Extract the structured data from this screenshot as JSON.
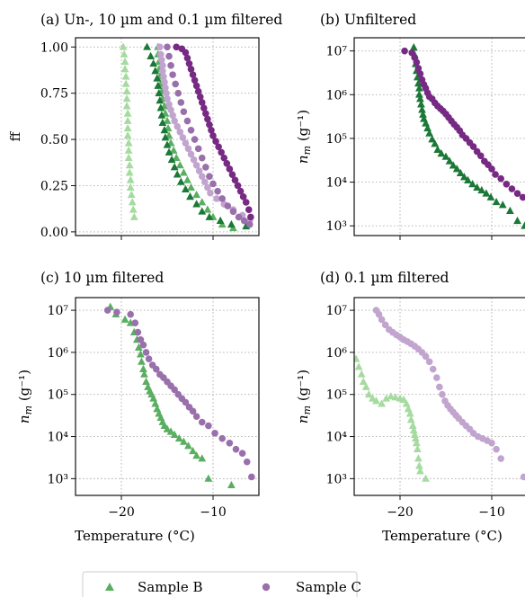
{
  "colors": {
    "B_dark": "#1b7837",
    "B_mid": "#5aae61",
    "B_light": "#a6dba0",
    "C_dark": "#762a83",
    "C_mid": "#9970ab",
    "C_light": "#c2a5cf",
    "grid": "#b0b0b0"
  },
  "legend": {
    "sample_b": "Sample B",
    "sample_c": "Sample C"
  },
  "chart_data": [
    {
      "id": "a",
      "type": "scatter",
      "title": "(a) Un-, 10 µm and 0.1 µm filtered",
      "xlim": [
        -25,
        -5
      ],
      "xticks": [
        -20,
        -10
      ],
      "ylim": [
        -0.02,
        1.05
      ],
      "yscale": "linear",
      "yticks": [
        0.0,
        0.25,
        0.5,
        0.75,
        1.0
      ],
      "ytick_labels": [
        "0.00",
        "0.25",
        "0.50",
        "0.75",
        "1.00"
      ],
      "ylabel": "ff",
      "xlabel": "",
      "series": [
        {
          "sample": "B",
          "marker": "triangle",
          "shade": "B_light",
          "x": [
            -19.8,
            -19.7,
            -19.6,
            -19.6,
            -19.5,
            -19.5,
            -19.4,
            -19.4,
            -19.4,
            -19.3,
            -19.3,
            -19.3,
            -19.3,
            -19.2,
            -19.2,
            -19.2,
            -19.1,
            -19.1,
            -19.0,
            -19.0,
            -18.9,
            -18.8,
            -18.7,
            -18.6
          ],
          "y": [
            1.0,
            0.96,
            0.92,
            0.88,
            0.84,
            0.8,
            0.76,
            0.72,
            0.68,
            0.64,
            0.6,
            0.56,
            0.52,
            0.48,
            0.44,
            0.4,
            0.36,
            0.32,
            0.28,
            0.24,
            0.2,
            0.16,
            0.12,
            0.08
          ]
        },
        {
          "sample": "B",
          "marker": "triangle",
          "shade": "B_mid",
          "x": [
            -16.0,
            -16.0,
            -15.9,
            -15.9,
            -15.8,
            -15.7,
            -15.6,
            -15.5,
            -15.3,
            -15.2,
            -15.0,
            -14.9,
            -14.8,
            -14.6,
            -14.3,
            -14.0,
            -13.6,
            -13.2,
            -12.8,
            -12.4,
            -11.8,
            -11.2,
            -10.6,
            -10.0,
            -9.0,
            -7.8
          ],
          "y": [
            1.0,
            0.96,
            0.92,
            0.88,
            0.84,
            0.8,
            0.76,
            0.72,
            0.68,
            0.64,
            0.6,
            0.56,
            0.52,
            0.48,
            0.44,
            0.4,
            0.36,
            0.32,
            0.28,
            0.24,
            0.2,
            0.16,
            0.12,
            0.08,
            0.04,
            0.02
          ]
        },
        {
          "sample": "B",
          "marker": "triangle",
          "shade": "B_dark",
          "x": [
            -17.2,
            -16.8,
            -16.5,
            -16.3,
            -16.1,
            -16.0,
            -15.9,
            -15.8,
            -15.7,
            -15.6,
            -15.5,
            -15.3,
            -15.2,
            -15.0,
            -14.8,
            -14.5,
            -14.2,
            -13.9,
            -13.5,
            -13.0,
            -12.5,
            -11.8,
            -11.2,
            -10.4,
            -9.2,
            -8.0,
            -6.4
          ],
          "y": [
            1.0,
            0.95,
            0.91,
            0.87,
            0.83,
            0.79,
            0.75,
            0.71,
            0.67,
            0.63,
            0.59,
            0.55,
            0.51,
            0.47,
            0.43,
            0.39,
            0.35,
            0.31,
            0.27,
            0.23,
            0.19,
            0.15,
            0.11,
            0.08,
            0.06,
            0.04,
            0.03
          ]
        },
        {
          "sample": "C",
          "marker": "circle",
          "shade": "C_light",
          "x": [
            -15.8,
            -15.7,
            -15.6,
            -15.5,
            -15.5,
            -15.4,
            -15.3,
            -15.2,
            -15.1,
            -15.0,
            -14.8,
            -14.6,
            -14.4,
            -14.2,
            -13.9,
            -13.6,
            -13.3,
            -13.0,
            -12.7,
            -12.4,
            -12.1,
            -11.8,
            -11.5,
            -11.2,
            -10.9,
            -10.6,
            -10.3,
            -9.6,
            -8.8,
            -7.8,
            -6.8,
            -6.0
          ],
          "y": [
            1.0,
            0.96,
            0.93,
            0.9,
            0.87,
            0.84,
            0.81,
            0.78,
            0.75,
            0.72,
            0.69,
            0.66,
            0.63,
            0.6,
            0.57,
            0.54,
            0.51,
            0.48,
            0.45,
            0.42,
            0.39,
            0.36,
            0.33,
            0.3,
            0.27,
            0.24,
            0.21,
            0.18,
            0.15,
            0.12,
            0.09,
            0.06
          ]
        },
        {
          "sample": "C",
          "marker": "circle",
          "shade": "C_mid",
          "x": [
            -15.0,
            -14.8,
            -14.6,
            -14.4,
            -14.1,
            -13.8,
            -13.5,
            -13.2,
            -12.8,
            -12.4,
            -12.0,
            -11.6,
            -11.2,
            -10.8,
            -10.4,
            -10.0,
            -9.5,
            -9.0,
            -8.4,
            -7.8,
            -7.2,
            -6.6,
            -6.0
          ],
          "y": [
            1.0,
            0.95,
            0.9,
            0.85,
            0.8,
            0.75,
            0.7,
            0.65,
            0.6,
            0.55,
            0.5,
            0.45,
            0.4,
            0.35,
            0.3,
            0.26,
            0.22,
            0.18,
            0.14,
            0.11,
            0.08,
            0.06,
            0.04
          ]
        },
        {
          "sample": "C",
          "marker": "circle",
          "shade": "C_dark",
          "x": [
            -14.0,
            -13.4,
            -13.0,
            -12.8,
            -12.6,
            -12.4,
            -12.2,
            -12.0,
            -11.8,
            -11.6,
            -11.4,
            -11.2,
            -11.0,
            -10.8,
            -10.6,
            -10.4,
            -10.2,
            -10.0,
            -9.7,
            -9.4,
            -9.1,
            -8.8,
            -8.5,
            -8.2,
            -7.9,
            -7.6,
            -7.3,
            -7.0,
            -6.7,
            -6.4,
            -6.1,
            -5.9
          ],
          "y": [
            1.0,
            0.99,
            0.97,
            0.94,
            0.91,
            0.88,
            0.85,
            0.82,
            0.79,
            0.76,
            0.73,
            0.7,
            0.67,
            0.64,
            0.61,
            0.58,
            0.55,
            0.52,
            0.49,
            0.46,
            0.43,
            0.4,
            0.37,
            0.34,
            0.31,
            0.28,
            0.25,
            0.22,
            0.19,
            0.16,
            0.12,
            0.08
          ]
        }
      ]
    },
    {
      "id": "b",
      "type": "scatter",
      "title": "(b) Unfiltered",
      "xlim": [
        -25,
        -5
      ],
      "xticks": [
        -20,
        -10
      ],
      "ylim": [
        600,
        20000000
      ],
      "yscale": "log",
      "yticks": [
        1000,
        10000,
        100000,
        1000000,
        10000000
      ],
      "ytick_labels": [
        "10³",
        "10⁴",
        "10⁵",
        "10⁶",
        "10⁷"
      ],
      "ylabel": "n_m (g⁻¹)",
      "xlabel": "",
      "series": [
        {
          "sample": "B",
          "marker": "triangle",
          "shade": "B_dark",
          "x": [
            -18.5,
            -18.4,
            -18.3,
            -18.2,
            -18.1,
            -18.0,
            -17.9,
            -17.9,
            -17.8,
            -17.7,
            -17.6,
            -17.5,
            -17.4,
            -17.2,
            -17.0,
            -16.8,
            -16.5,
            -16.2,
            -15.9,
            -15.5,
            -15.0,
            -14.6,
            -14.2,
            -13.8,
            -13.4,
            -13.0,
            -12.6,
            -12.1,
            -11.6,
            -11.1,
            -10.6,
            -10.1,
            -9.5,
            -8.8,
            -8.0,
            -7.2,
            -6.4
          ],
          "y": [
            12000000,
            8000000,
            5000000,
            3500000,
            2500000,
            1800000,
            1400000,
            1000000,
            800000,
            600000,
            450000,
            350000,
            280000,
            220000,
            170000,
            130000,
            95000,
            75000,
            55000,
            45000,
            38000,
            30000,
            24000,
            20000,
            16000,
            13000,
            11000,
            9000,
            7500,
            6500,
            5500,
            4500,
            3500,
            3000,
            2200,
            1300,
            1000
          ]
        },
        {
          "sample": "C",
          "marker": "circle",
          "shade": "C_dark",
          "x": [
            -19.5,
            -18.7,
            -18.4,
            -18.2,
            -18.0,
            -17.8,
            -17.6,
            -17.4,
            -17.2,
            -17.0,
            -16.8,
            -16.5,
            -16.2,
            -15.9,
            -15.6,
            -15.3,
            -15.0,
            -14.7,
            -14.4,
            -14.1,
            -13.8,
            -13.5,
            -13.2,
            -12.8,
            -12.4,
            -12.0,
            -11.6,
            -11.2,
            -10.8,
            -10.4,
            -10.0,
            -9.6,
            -9.0,
            -8.4,
            -7.8,
            -7.2,
            -6.6,
            -6.0,
            -5.6
          ],
          "y": [
            10000000,
            9000000,
            7000000,
            5500000,
            4000000,
            3000000,
            2200000,
            1700000,
            1400000,
            1100000,
            900000,
            800000,
            650000,
            550000,
            480000,
            420000,
            360000,
            300000,
            250000,
            210000,
            180000,
            150000,
            120000,
            100000,
            80000,
            65000,
            50000,
            40000,
            30000,
            25000,
            20000,
            15000,
            12000,
            9000,
            7000,
            5500,
            4500,
            2500,
            1500
          ]
        }
      ]
    },
    {
      "id": "c",
      "type": "scatter",
      "title": "(c) 10 µm filtered",
      "xlim": [
        -25,
        -5
      ],
      "xticks": [
        -20,
        -10
      ],
      "xtick_labels": [
        "−20",
        "−10"
      ],
      "ylim": [
        400,
        20000000
      ],
      "yscale": "log",
      "yticks": [
        1000,
        10000,
        100000,
        1000000,
        10000000
      ],
      "ytick_labels": [
        "10³",
        "10⁴",
        "10⁵",
        "10⁶",
        "10⁷"
      ],
      "ylabel": "n_m (g⁻¹)",
      "xlabel": "Temperature (°C)",
      "series": [
        {
          "sample": "B",
          "marker": "triangle",
          "shade": "B_mid",
          "x": [
            -21.2,
            -20.6,
            -19.6,
            -19.0,
            -18.6,
            -18.3,
            -18.1,
            -17.9,
            -17.8,
            -17.6,
            -17.5,
            -17.3,
            -17.1,
            -16.9,
            -16.7,
            -16.5,
            -16.3,
            -16.1,
            -15.9,
            -15.7,
            -15.5,
            -15.3,
            -15.0,
            -14.6,
            -14.2,
            -13.7,
            -13.2,
            -12.7,
            -12.2,
            -11.8,
            -11.2,
            -10.5,
            -8.0
          ],
          "y": [
            12000000,
            8000000,
            6000000,
            5000000,
            3000000,
            2000000,
            1300000,
            900000,
            600000,
            400000,
            300000,
            200000,
            150000,
            120000,
            100000,
            80000,
            60000,
            45000,
            35000,
            28000,
            22000,
            18000,
            15000,
            13000,
            11000,
            9000,
            7500,
            6000,
            4500,
            3500,
            3000,
            1000,
            700
          ]
        },
        {
          "sample": "C",
          "marker": "circle",
          "shade": "C_mid",
          "x": [
            -21.5,
            -20.5,
            -19.0,
            -18.5,
            -18.2,
            -17.9,
            -17.6,
            -17.3,
            -17.0,
            -16.6,
            -16.2,
            -15.8,
            -15.4,
            -15.0,
            -14.6,
            -14.2,
            -13.8,
            -13.4,
            -13.0,
            -12.6,
            -12.2,
            -11.8,
            -11.2,
            -10.5,
            -9.8,
            -9.0,
            -8.2,
            -7.5,
            -6.8,
            -6.3,
            -5.8
          ],
          "y": [
            10000000,
            9000000,
            8000000,
            5000000,
            3000000,
            2000000,
            1500000,
            1000000,
            700000,
            500000,
            400000,
            300000,
            250000,
            200000,
            160000,
            130000,
            100000,
            80000,
            65000,
            50000,
            40000,
            30000,
            22000,
            18000,
            12000,
            9000,
            7000,
            5000,
            4000,
            2500,
            1100
          ]
        }
      ]
    },
    {
      "id": "d",
      "type": "scatter",
      "title": "(d) 0.1 µm filtered",
      "xlim": [
        -25,
        -5
      ],
      "xticks": [
        -20,
        -10
      ],
      "xtick_labels": [
        "−20",
        "−10"
      ],
      "ylim": [
        400,
        20000000
      ],
      "yscale": "log",
      "yticks": [
        1000,
        10000,
        100000,
        1000000,
        10000000
      ],
      "ytick_labels": [
        "10³",
        "10⁴",
        "10⁵",
        "10⁶",
        "10⁷"
      ],
      "ylabel": "n_m (g⁻¹)",
      "xlabel": "Temperature (°C)",
      "series": [
        {
          "sample": "B",
          "marker": "triangle",
          "shade": "B_light",
          "x": [
            -24.8,
            -24.5,
            -24.2,
            -24.0,
            -23.7,
            -23.4,
            -23.0,
            -22.6,
            -22.0,
            -21.5,
            -21.0,
            -20.5,
            -20.0,
            -19.6,
            -19.3,
            -19.1,
            -18.9,
            -18.8,
            -18.6,
            -18.5,
            -18.4,
            -18.3,
            -18.2,
            -18.1,
            -18.0,
            -17.9,
            -17.8,
            -17.2
          ],
          "y": [
            700000,
            450000,
            300000,
            200000,
            150000,
            100000,
            80000,
            70000,
            60000,
            80000,
            90000,
            85000,
            80000,
            75000,
            60000,
            45000,
            35000,
            25000,
            18000,
            14000,
            11000,
            9000,
            7000,
            5000,
            3000,
            2000,
            1500,
            1000
          ]
        },
        {
          "sample": "C",
          "marker": "circle",
          "shade": "C_light",
          "x": [
            -22.6,
            -22.3,
            -22.0,
            -21.6,
            -21.2,
            -20.8,
            -20.4,
            -20.0,
            -19.6,
            -19.2,
            -18.8,
            -18.4,
            -18.0,
            -17.6,
            -17.2,
            -16.8,
            -16.4,
            -16.0,
            -15.7,
            -15.4,
            -15.1,
            -14.8,
            -14.5,
            -14.2,
            -13.9,
            -13.6,
            -13.2,
            -12.8,
            -12.4,
            -12.0,
            -11.5,
            -11.0,
            -10.5,
            -10.0,
            -9.5,
            -9.0,
            -6.5,
            -5.5
          ],
          "y": [
            10000000,
            8000000,
            6000000,
            4500000,
            3500000,
            3000000,
            2600000,
            2300000,
            2000000,
            1800000,
            1600000,
            1400000,
            1200000,
            1000000,
            800000,
            600000,
            400000,
            250000,
            150000,
            100000,
            70000,
            55000,
            45000,
            38000,
            32000,
            27000,
            22000,
            18000,
            15000,
            12000,
            10000,
            9000,
            8000,
            7000,
            5000,
            3000,
            1100,
            1000
          ]
        }
      ]
    }
  ]
}
